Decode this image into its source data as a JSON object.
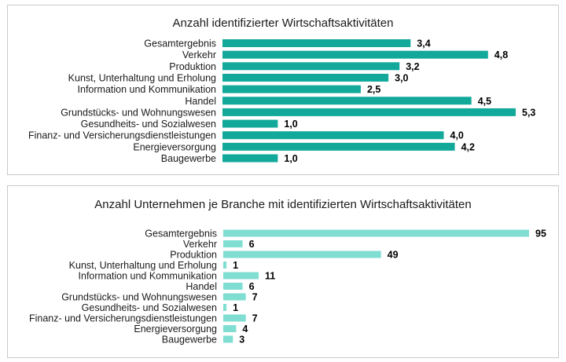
{
  "chart_data": [
    {
      "type": "bar",
      "orientation": "horizontal",
      "title": "Anzahl identifizierter Wirtschaftsaktivitäten",
      "categories": [
        "Gesamtergebnis",
        "Verkehr",
        "Produktion",
        "Kunst, Unterhaltung und Erholung",
        "Information und Kommunikation",
        "Handel",
        "Grundstücks- und Wohnungswesen",
        "Gesundheits- und Sozialwesen",
        "Finanz- und Versicherungsdienstleistungen",
        "Energieversorgung",
        "Baugewerbe"
      ],
      "values": [
        3.4,
        4.8,
        3.2,
        3.0,
        2.5,
        4.5,
        5.3,
        1.0,
        4.0,
        4.2,
        1.0
      ],
      "value_labels": [
        "3,4",
        "4,8",
        "3,2",
        "3,0",
        "2,5",
        "4,5",
        "5,3",
        "1,0",
        "4,0",
        "4,2",
        "1,0"
      ],
      "xlim": [
        0,
        5.3
      ],
      "grid": false,
      "legend": "none",
      "color": "#12a99b"
    },
    {
      "type": "bar",
      "orientation": "horizontal",
      "title": "Anzahl Unternehmen je Branche mit identifizierten Wirtschaftsaktivitäten",
      "categories": [
        "Gesamtergebnis",
        "Verkehr",
        "Produktion",
        "Kunst, Unterhaltung und Erholung",
        "Information und Kommunikation",
        "Handel",
        "Grundstücks- und Wohnungswesen",
        "Gesundheits- und Sozialwesen",
        "Finanz- und Versicherungsdienstleistungen",
        "Energieversorgung",
        "Baugewerbe"
      ],
      "values": [
        95,
        6,
        49,
        1,
        11,
        6,
        7,
        1,
        7,
        4,
        3
      ],
      "value_labels": [
        "95",
        "6",
        "49",
        "1",
        "11",
        "6",
        "7",
        "1",
        "7",
        "4",
        "3"
      ],
      "xlim": [
        0,
        95
      ],
      "grid": false,
      "legend": "none",
      "color": "#7fddd2"
    }
  ]
}
